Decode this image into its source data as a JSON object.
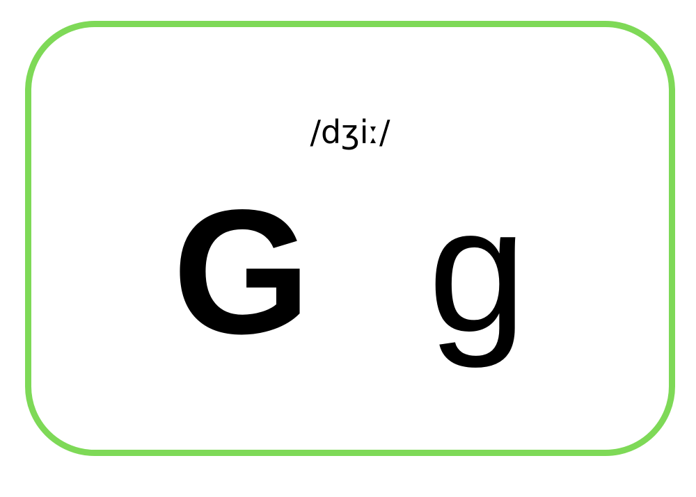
{
  "card": {
    "border_color": "#7ed957",
    "phonetic": "/dʒiː/",
    "uppercase": "G",
    "lowercase": "g"
  }
}
